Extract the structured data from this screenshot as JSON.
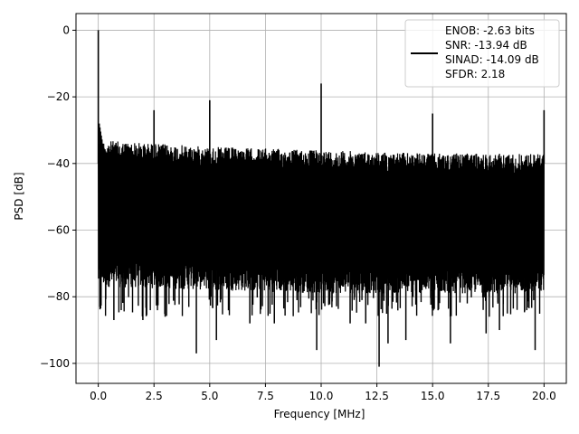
{
  "chart_data": {
    "type": "line",
    "title": "",
    "xlabel": "Frequency [MHz]",
    "ylabel": "PSD [dB]",
    "xlim": [
      -1.0,
      21.0
    ],
    "ylim": [
      -106.0,
      5.0
    ],
    "xticks": [
      0.0,
      2.5,
      5.0,
      7.5,
      10.0,
      12.5,
      15.0,
      17.5,
      20.0
    ],
    "xtick_labels": [
      "0.0",
      "2.5",
      "5.0",
      "7.5",
      "10.0",
      "12.5",
      "15.0",
      "17.5",
      "20.0"
    ],
    "yticks": [
      0,
      -20,
      -40,
      -60,
      -80,
      -100
    ],
    "ytick_labels": [
      "0",
      "−20",
      "−40",
      "−60",
      "−80",
      "−100"
    ],
    "grid": true,
    "legend_position": "top-right",
    "series": [
      {
        "color": "#000000",
        "noise_band": {
          "upper_envelope": {
            "x": [
              0.0,
              5.0,
              10.0,
              15.0,
              20.0
            ],
            "y": [
              -33,
              -35,
              -36,
              -37,
              -37
            ]
          },
          "lower_envelope": {
            "x": [
              0.0,
              5.0,
              10.0,
              15.0,
              20.0
            ],
            "y": [
              -77,
              -78,
              -79,
              -79,
              -79
            ]
          }
        },
        "peaks": [
          {
            "x": 0.0,
            "y": 0
          },
          {
            "x": 2.5,
            "y": -24
          },
          {
            "x": 5.0,
            "y": -21
          },
          {
            "x": 10.0,
            "y": -16
          },
          {
            "x": 15.0,
            "y": -25
          },
          {
            "x": 20.0,
            "y": -24
          }
        ],
        "dips": [
          {
            "x": 0.7,
            "y": -87
          },
          {
            "x": 2.0,
            "y": -87
          },
          {
            "x": 3.0,
            "y": -86
          },
          {
            "x": 4.4,
            "y": -97
          },
          {
            "x": 5.3,
            "y": -93
          },
          {
            "x": 6.8,
            "y": -88
          },
          {
            "x": 7.9,
            "y": -88
          },
          {
            "x": 9.8,
            "y": -96
          },
          {
            "x": 11.3,
            "y": -88
          },
          {
            "x": 12.0,
            "y": -88
          },
          {
            "x": 12.6,
            "y": -101
          },
          {
            "x": 13.0,
            "y": -94
          },
          {
            "x": 13.8,
            "y": -93
          },
          {
            "x": 15.8,
            "y": -94
          },
          {
            "x": 17.4,
            "y": -91
          },
          {
            "x": 18.0,
            "y": -90
          },
          {
            "x": 19.6,
            "y": -96
          }
        ]
      }
    ],
    "legend": {
      "lines": [
        "ENOB: -2.63 bits",
        "SNR: -13.94 dB",
        "SINAD: -14.09 dB",
        "SFDR: 2.18"
      ]
    }
  }
}
